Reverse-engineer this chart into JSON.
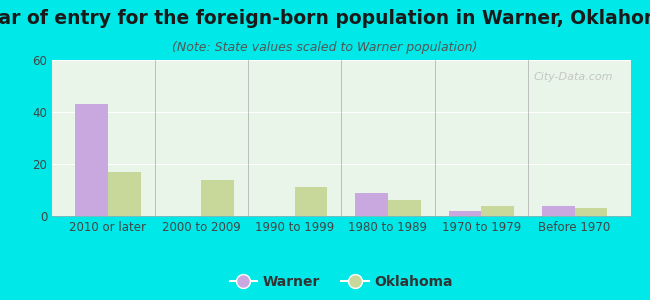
{
  "title": "Year of entry for the foreign-born population in Warner, Oklahoma",
  "subtitle": "(Note: State values scaled to Warner population)",
  "categories": [
    "2010 or later",
    "2000 to 2009",
    "1990 to 1999",
    "1980 to 1989",
    "1970 to 1979",
    "Before 1970"
  ],
  "warner_values": [
    43,
    0,
    0,
    9,
    2,
    4
  ],
  "oklahoma_values": [
    17,
    14,
    11,
    6,
    4,
    3
  ],
  "warner_color": "#c9a8e0",
  "oklahoma_color": "#c8d89a",
  "background_outer": "#00e8e8",
  "background_inner": "#e8f5e8",
  "ylim": [
    0,
    60
  ],
  "yticks": [
    0,
    20,
    40,
    60
  ],
  "bar_width": 0.35,
  "title_fontsize": 13.5,
  "subtitle_fontsize": 9,
  "legend_fontsize": 10,
  "tick_fontsize": 8.5,
  "watermark_text": "City-Data.com",
  "title_color": "#1a1a1a",
  "subtitle_color": "#555555",
  "tick_color": "#444444"
}
